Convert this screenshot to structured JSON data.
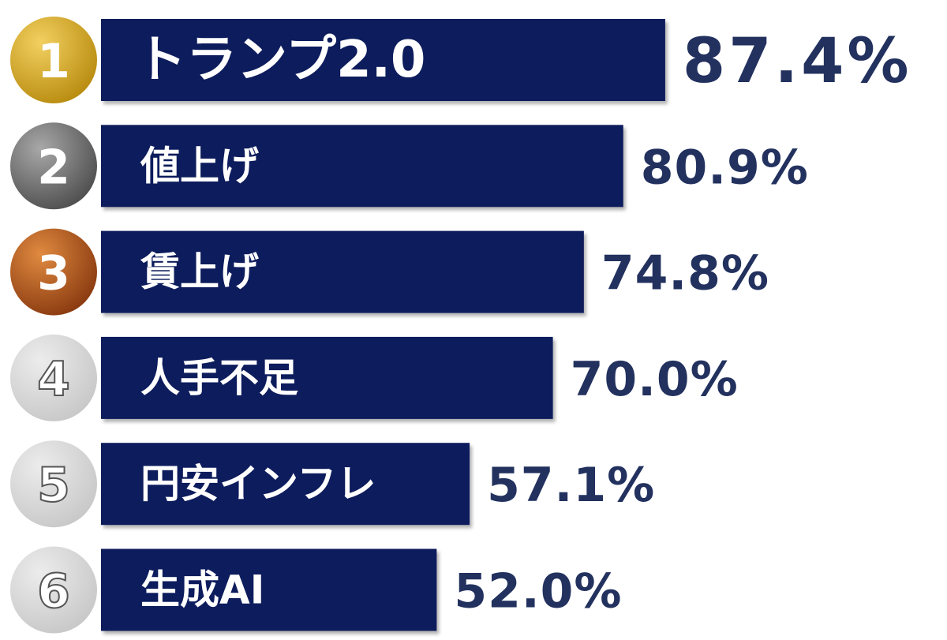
{
  "chart_data": {
    "type": "bar",
    "ranks": [
      "1",
      "2",
      "3",
      "4",
      "5",
      "6"
    ],
    "categories": [
      "トランプ2.0",
      "値上げ",
      "賃上げ",
      "人手不足",
      "円安インフレ",
      "生成AI"
    ],
    "values": [
      87.4,
      80.9,
      74.8,
      70.0,
      57.1,
      52.0
    ],
    "value_labels": [
      "87.4%",
      "80.9%",
      "74.8%",
      "70.0%",
      "57.1%",
      "52.0%"
    ],
    "color": "#0c1f5c"
  }
}
